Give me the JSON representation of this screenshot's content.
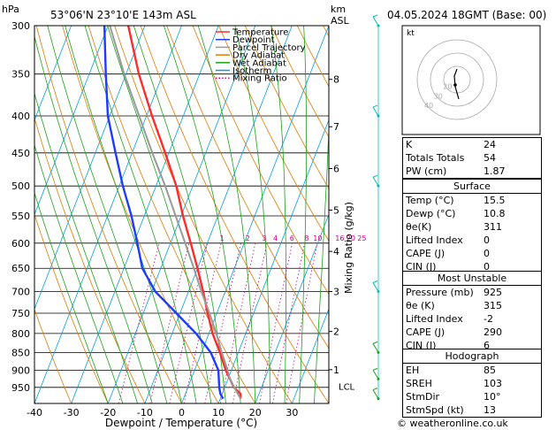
{
  "header": {
    "hpa_label": "hPa",
    "location": "53°06'N  23°10'E  143m  ASL",
    "km_label": "km",
    "asl_label": "ASL",
    "datetime": "04.05.2024  18GMT  (Base: 00)"
  },
  "legend": [
    {
      "label": "Temperature",
      "color": "#ff2a2a",
      "style": "solid"
    },
    {
      "label": "Dewpoint",
      "color": "#1e3cff",
      "style": "solid"
    },
    {
      "label": "Parcel Trajectory",
      "color": "#999999",
      "style": "solid"
    },
    {
      "label": "Dry Adiabat",
      "color": "#e07b00",
      "style": "solid"
    },
    {
      "label": "Wet Adiabat",
      "color": "#1aa31a",
      "style": "solid"
    },
    {
      "label": "Isotherm",
      "color": "#00a0e0",
      "style": "solid"
    },
    {
      "label": "Mixing Ratio",
      "color": "#d0008a",
      "style": "dotted"
    }
  ],
  "chart_data": {
    "type": "line",
    "title": "",
    "xlabel": "Dewpoint / Temperature (°C)",
    "ylabel_right": "Mixing Ratio (g/kg)",
    "xlim": [
      -40,
      40
    ],
    "ylim": [
      300,
      1000
    ],
    "x_ticks": [
      -40,
      -30,
      -20,
      -10,
      0,
      10,
      20,
      30
    ],
    "pressure_levels": [
      300,
      350,
      400,
      450,
      500,
      550,
      600,
      650,
      700,
      750,
      800,
      850,
      900,
      950
    ],
    "km_ticks": [
      {
        "label": "8",
        "p": 356
      },
      {
        "label": "7",
        "p": 414
      },
      {
        "label": "6",
        "p": 473
      },
      {
        "label": "5",
        "p": 540
      },
      {
        "label": "4",
        "p": 616
      },
      {
        "label": "3",
        "p": 700
      },
      {
        "label": "2",
        "p": 795
      },
      {
        "label": "1",
        "p": 898
      }
    ],
    "lcl": {
      "label": "LCL",
      "p": 925
    },
    "mixing_ratio_labels": [
      {
        "label": "1",
        "t": -6
      },
      {
        "label": "2",
        "t": 1
      },
      {
        "label": "3",
        "t": 5.5
      },
      {
        "label": "4",
        "t": 8.5
      },
      {
        "label": "6",
        "t": 13
      },
      {
        "label": "8",
        "t": 17
      },
      {
        "label": "10",
        "t": 20
      },
      {
        "label": "16",
        "t": 26
      },
      {
        "label": "20",
        "t": 29
      },
      {
        "label": "25",
        "t": 32
      }
    ],
    "series": [
      {
        "name": "Temperature",
        "color": "#ff2a2a",
        "p": [
          985,
          970,
          950,
          900,
          850,
          800,
          750,
          700,
          650,
          600,
          550,
          500,
          450,
          400,
          350,
          300
        ],
        "t": [
          15.5,
          15.0,
          12.5,
          8.5,
          5.0,
          1.0,
          -2.5,
          -6.0,
          -10.0,
          -14.5,
          -19.5,
          -24.5,
          -31.0,
          -38.5,
          -46.5,
          -54.5
        ]
      },
      {
        "name": "Dewpoint",
        "color": "#1e3cff",
        "p": [
          985,
          970,
          950,
          900,
          850,
          800,
          750,
          700,
          650,
          600,
          550,
          500,
          450,
          400,
          350,
          300
        ],
        "t": [
          10.8,
          9.5,
          8.5,
          6.5,
          2.5,
          -3.5,
          -11.0,
          -19.0,
          -25.0,
          -29.0,
          -33.5,
          -39.0,
          -44.5,
          -50.5,
          -55.5,
          -61.0
        ]
      },
      {
        "name": "Parcel Trajectory",
        "color": "#999999",
        "p": [
          985,
          925,
          900,
          850,
          800,
          750,
          700,
          650,
          600,
          550,
          500,
          450,
          400,
          350,
          300
        ],
        "t": [
          15.5,
          10.5,
          9.0,
          5.5,
          2.0,
          -2.0,
          -6.5,
          -11.0,
          -16.0,
          -21.5,
          -27.5,
          -34.5,
          -42.0,
          -50.5,
          -59.5
        ]
      }
    ],
    "wind_barbs_p": [
      300,
      400,
      500,
      700,
      850,
      925,
      985
    ]
  },
  "hodograph": {
    "unit_label": "kt",
    "ring_labels": [
      "40",
      "30",
      "20"
    ]
  },
  "indices": [
    {
      "k": "K",
      "v": "24"
    },
    {
      "k": "Totals Totals",
      "v": "54"
    },
    {
      "k": "PW (cm)",
      "v": "1.87"
    }
  ],
  "surface": {
    "title": "Surface",
    "rows": [
      {
        "k": "Temp (°C)",
        "v": "15.5"
      },
      {
        "k": "Dewp (°C)",
        "v": "10.8"
      },
      {
        "k": "θe(K)",
        "v": "311"
      },
      {
        "k": "Lifted Index",
        "v": "0"
      },
      {
        "k": "CAPE (J)",
        "v": "0"
      },
      {
        "k": "CIN (J)",
        "v": "0"
      }
    ]
  },
  "most_unstable": {
    "title": "Most Unstable",
    "rows": [
      {
        "k": "Pressure (mb)",
        "v": "925"
      },
      {
        "k": "θe (K)",
        "v": "315"
      },
      {
        "k": "Lifted Index",
        "v": "-2"
      },
      {
        "k": "CAPE (J)",
        "v": "290"
      },
      {
        "k": "CIN (J)",
        "v": "6"
      }
    ]
  },
  "hodograph_table": {
    "title": "Hodograph",
    "rows": [
      {
        "k": "EH",
        "v": "85"
      },
      {
        "k": "SREH",
        "v": "103"
      },
      {
        "k": "StmDir",
        "v": "10°"
      },
      {
        "k": "StmSpd (kt)",
        "v": "13"
      }
    ]
  },
  "footer": "© weatheronline.co.uk"
}
